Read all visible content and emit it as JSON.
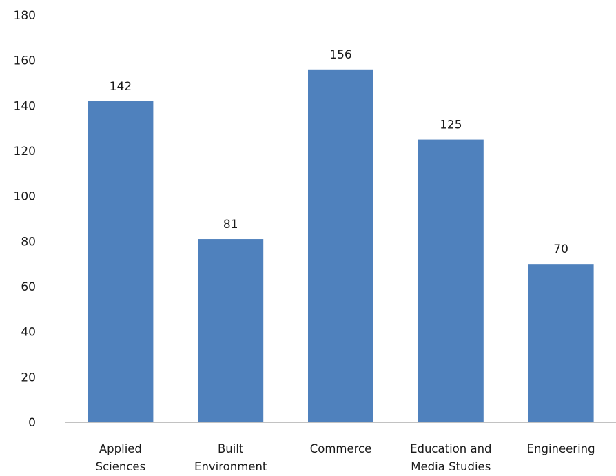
{
  "chart_data": {
    "type": "bar",
    "title": "",
    "xlabel": "",
    "ylabel": "",
    "categories": [
      [
        "Applied",
        "Sciences"
      ],
      [
        "Built",
        "Environment"
      ],
      [
        "Commerce"
      ],
      [
        "Education and",
        "Media Studies"
      ],
      [
        "Engineering"
      ]
    ],
    "values": [
      142,
      81,
      156,
      125,
      70
    ],
    "data_labels": [
      "142",
      "81",
      "156",
      "125",
      "70"
    ],
    "ylim": [
      0,
      180
    ],
    "yticks": [
      "0",
      "20",
      "40",
      "60",
      "80",
      "100",
      "120",
      "140",
      "160",
      "180"
    ],
    "grid": false,
    "legend": "none",
    "bar_color": "#4f81bd",
    "axis_color": "#868686"
  }
}
